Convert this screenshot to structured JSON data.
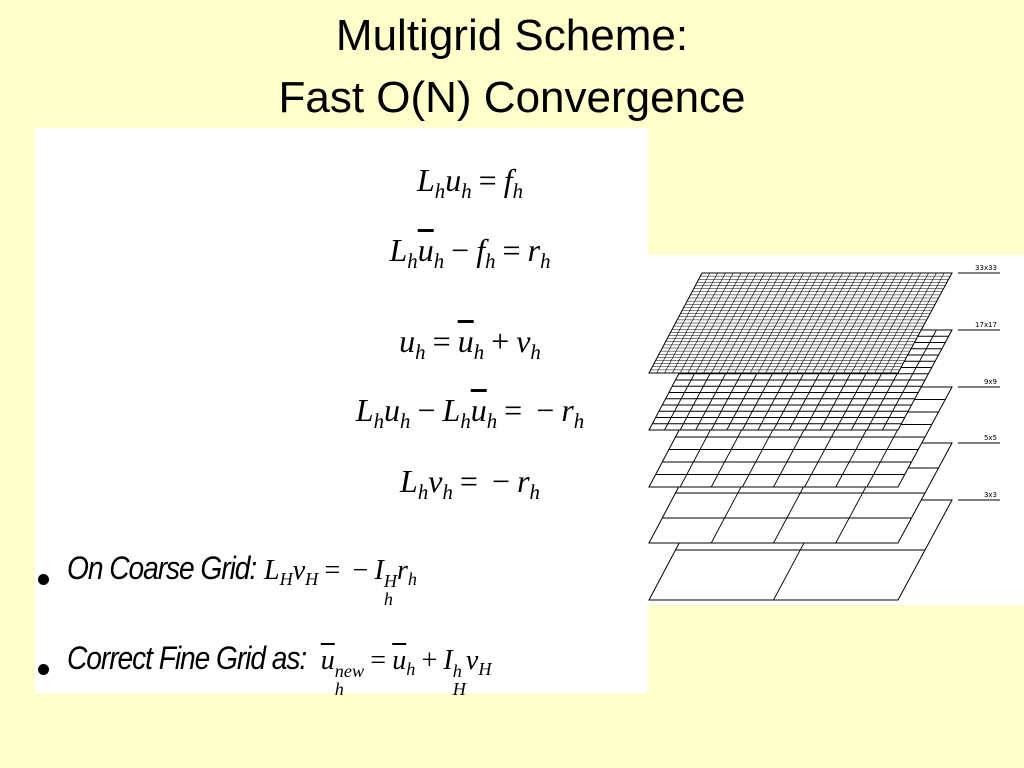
{
  "title": [
    "Multigrid Scheme:",
    "Fast O(N) Convergence"
  ],
  "equations": [
    [
      {
        "b": "L",
        "sub": "h"
      },
      {
        "b": "u",
        "sub": "h"
      },
      "=",
      {
        "b": "f",
        "sub": "h"
      }
    ],
    [
      {
        "b": "L",
        "sub": "h"
      },
      {
        "b": "u",
        "sub": "h",
        "bar": true
      },
      "−",
      {
        "b": "f",
        "sub": "h"
      },
      "=",
      {
        "b": "r",
        "sub": "h"
      }
    ],
    [
      {
        "b": "u",
        "sub": "h"
      },
      "=",
      {
        "b": "u",
        "sub": "h",
        "bar": true
      },
      "+",
      {
        "b": "v",
        "sub": "h"
      }
    ],
    [
      {
        "b": "L",
        "sub": "h"
      },
      {
        "b": "u",
        "sub": "h"
      },
      "−",
      {
        "b": "L",
        "sub": "h"
      },
      {
        "b": "u",
        "sub": "h",
        "bar": true
      },
      "=",
      "−",
      {
        "b": "r",
        "sub": "h"
      }
    ],
    [
      {
        "b": "L",
        "sub": "h"
      },
      {
        "b": "v",
        "sub": "h"
      },
      "=",
      "−",
      {
        "b": "r",
        "sub": "h"
      }
    ]
  ],
  "bullets": [
    {
      "label": "On Coarse Grid:",
      "eq": [
        {
          "b": "L",
          "sub": "H"
        },
        {
          "b": "v",
          "sub": "H"
        },
        "=",
        "−",
        {
          "b": "I",
          "sub": "h",
          "sup": "H"
        },
        {
          "b": "r",
          "sub": "h"
        }
      ]
    },
    {
      "label": "Correct Fine Grid as:",
      "eq": [
        {
          "b": "u",
          "sub": "h",
          "sup": "new",
          "bar": true
        },
        "=",
        {
          "b": "u",
          "sub": "h",
          "bar": true
        },
        "+",
        {
          "b": "I",
          "sub": "H",
          "sup": "h"
        },
        {
          "b": "v",
          "sub": "H"
        }
      ]
    }
  ],
  "grid_labels": [
    "33x33",
    "17x17",
    "9x9",
    "5x5",
    "3x3"
  ]
}
